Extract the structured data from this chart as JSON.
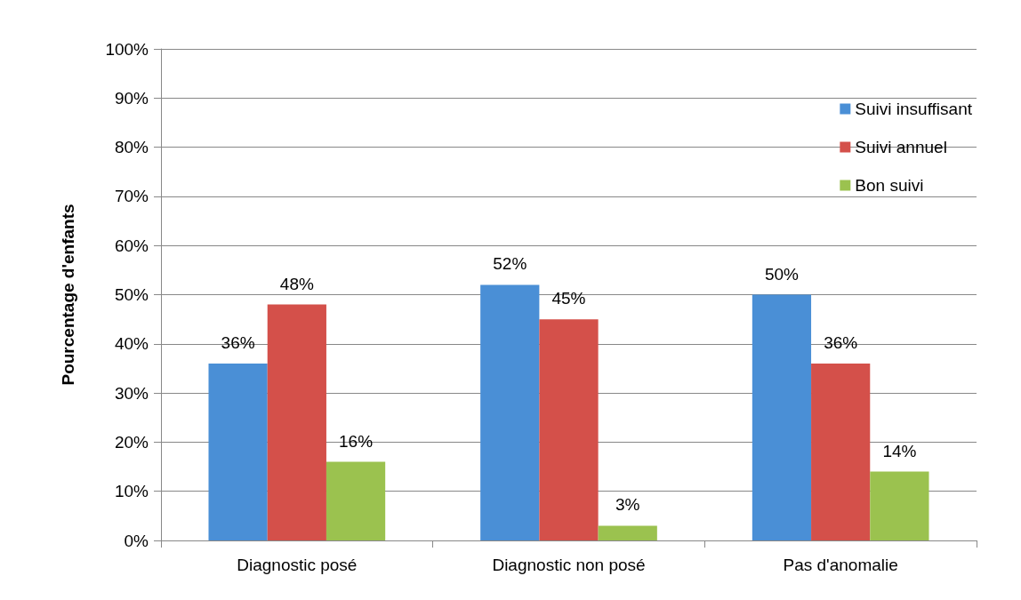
{
  "chart_data": {
    "type": "bar",
    "ylabel": "Pourcentage d'enfants",
    "categories": [
      "Diagnostic posé",
      "Diagnostic non posé",
      "Pas d'anomalie"
    ],
    "series": [
      {
        "name": "Suivi insuffisant",
        "color": "#4a8fd6",
        "values": [
          36,
          52,
          50
        ],
        "value_labels": [
          "36%",
          "52%",
          "50%"
        ]
      },
      {
        "name": "Suivi annuel",
        "color": "#d4504a",
        "values": [
          48,
          45,
          36
        ],
        "value_labels": [
          "48%",
          "45%",
          "36%"
        ]
      },
      {
        "name": "Bon suivi",
        "color": "#9bc24f",
        "values": [
          16,
          3,
          14
        ],
        "value_labels": [
          "16%",
          "3%",
          "14%"
        ]
      }
    ],
    "ylim": [
      0,
      100
    ],
    "yticks": [
      {
        "value": 0,
        "label": "0%"
      },
      {
        "value": 10,
        "label": "10%"
      },
      {
        "value": 20,
        "label": "20%"
      },
      {
        "value": 30,
        "label": "30%"
      },
      {
        "value": 40,
        "label": "40%"
      },
      {
        "value": 50,
        "label": "50%"
      },
      {
        "value": 60,
        "label": "60%"
      },
      {
        "value": 70,
        "label": "70%"
      },
      {
        "value": 80,
        "label": "80%"
      },
      {
        "value": 90,
        "label": "90%"
      },
      {
        "value": 100,
        "label": "100%"
      }
    ],
    "grid": "y",
    "legend": "top right"
  }
}
